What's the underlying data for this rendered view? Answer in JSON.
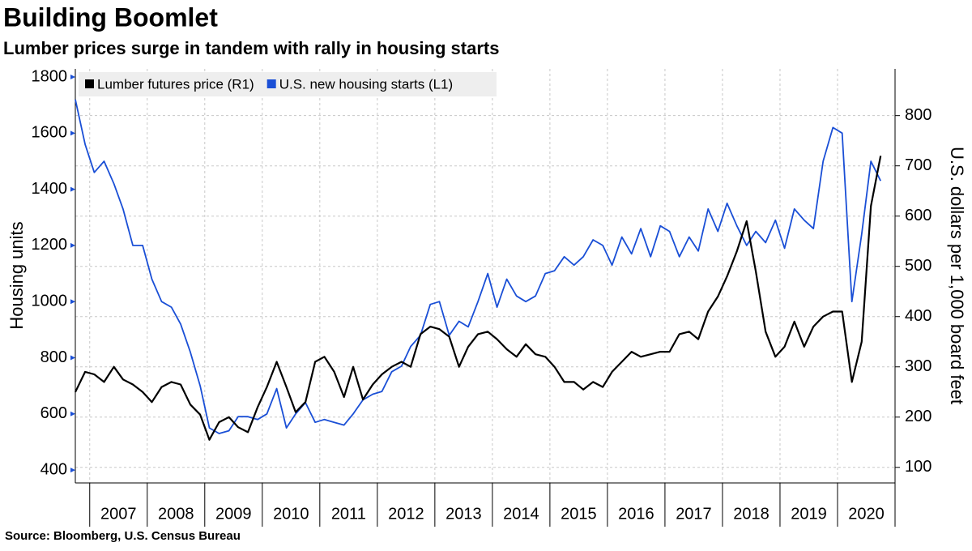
{
  "chart_data": {
    "type": "line",
    "title": "Building Boomlet",
    "subtitle": "Lumber prices surge in tandem with rally in housing starts",
    "source": "Source: Bloomberg, U.S. Census Bureau",
    "y_label": "Housing units",
    "y2_label": "U.S. dollars per 1,000 board feet",
    "legend": "top-left",
    "grid": true,
    "x": [
      2006.75,
      2006.92,
      2007.08,
      2007.25,
      2007.42,
      2007.58,
      2007.75,
      2007.92,
      2008.08,
      2008.25,
      2008.42,
      2008.58,
      2008.75,
      2008.92,
      2009.08,
      2009.25,
      2009.42,
      2009.58,
      2009.75,
      2009.92,
      2010.08,
      2010.25,
      2010.42,
      2010.58,
      2010.75,
      2010.92,
      2011.08,
      2011.25,
      2011.42,
      2011.58,
      2011.75,
      2011.92,
      2012.08,
      2012.25,
      2012.42,
      2012.58,
      2012.75,
      2012.92,
      2013.08,
      2013.25,
      2013.42,
      2013.58,
      2013.75,
      2013.92,
      2014.08,
      2014.25,
      2014.42,
      2014.58,
      2014.75,
      2014.92,
      2015.08,
      2015.25,
      2015.42,
      2015.58,
      2015.75,
      2015.92,
      2016.08,
      2016.25,
      2016.42,
      2016.58,
      2016.75,
      2016.92,
      2017.08,
      2017.25,
      2017.42,
      2017.58,
      2017.75,
      2017.92,
      2018.08,
      2018.25,
      2018.42,
      2018.58,
      2018.75,
      2018.92,
      2019.08,
      2019.25,
      2019.42,
      2019.58,
      2019.75,
      2019.92,
      2020.08,
      2020.25,
      2020.42,
      2020.58,
      2020.75
    ],
    "xlim": [
      2006.75,
      2021
    ],
    "xticks": [
      2007,
      2008,
      2009,
      2010,
      2011,
      2012,
      2013,
      2014,
      2015,
      2016,
      2017,
      2018,
      2019,
      2020
    ],
    "ylim": [
      354,
      1829
    ],
    "yticks": [
      400,
      600,
      800,
      1000,
      1200,
      1400,
      1600,
      1800
    ],
    "y2lim": [
      69,
      893
    ],
    "y2ticks": [
      100,
      200,
      300,
      400,
      500,
      600,
      700,
      800
    ],
    "series": [
      {
        "name": "Lumber futures price (R1)",
        "color": "#000000",
        "axis": "y2",
        "values": [
          250,
          290,
          285,
          270,
          300,
          275,
          265,
          250,
          230,
          260,
          270,
          265,
          225,
          205,
          155,
          190,
          200,
          180,
          170,
          220,
          260,
          310,
          260,
          210,
          230,
          310,
          320,
          290,
          240,
          300,
          235,
          265,
          285,
          300,
          310,
          300,
          365,
          380,
          375,
          360,
          300,
          340,
          365,
          370,
          355,
          335,
          320,
          345,
          325,
          320,
          300,
          270,
          270,
          255,
          270,
          260,
          290,
          310,
          330,
          320,
          325,
          330,
          330,
          365,
          370,
          355,
          410,
          440,
          480,
          530,
          590,
          490,
          370,
          320,
          340,
          390,
          340,
          380,
          400,
          410,
          410,
          270,
          350,
          620,
          720
        ]
      },
      {
        "name": "U.S. new housing starts (L1)",
        "color": "#1a4fd6",
        "values": [
          1720,
          1560,
          1460,
          1500,
          1420,
          1330,
          1200,
          1200,
          1080,
          1000,
          980,
          920,
          820,
          700,
          550,
          530,
          540,
          590,
          590,
          580,
          600,
          690,
          550,
          600,
          640,
          570,
          580,
          570,
          560,
          600,
          650,
          670,
          680,
          750,
          770,
          840,
          880,
          990,
          1000,
          880,
          930,
          910,
          1000,
          1100,
          980,
          1080,
          1020,
          1000,
          1020,
          1100,
          1110,
          1160,
          1130,
          1160,
          1220,
          1200,
          1130,
          1230,
          1170,
          1260,
          1160,
          1270,
          1250,
          1160,
          1230,
          1180,
          1330,
          1250,
          1350,
          1270,
          1200,
          1250,
          1210,
          1290,
          1190,
          1330,
          1290,
          1260,
          1500,
          1620,
          1600,
          1000,
          1240,
          1500,
          1430
        ]
      }
    ]
  }
}
